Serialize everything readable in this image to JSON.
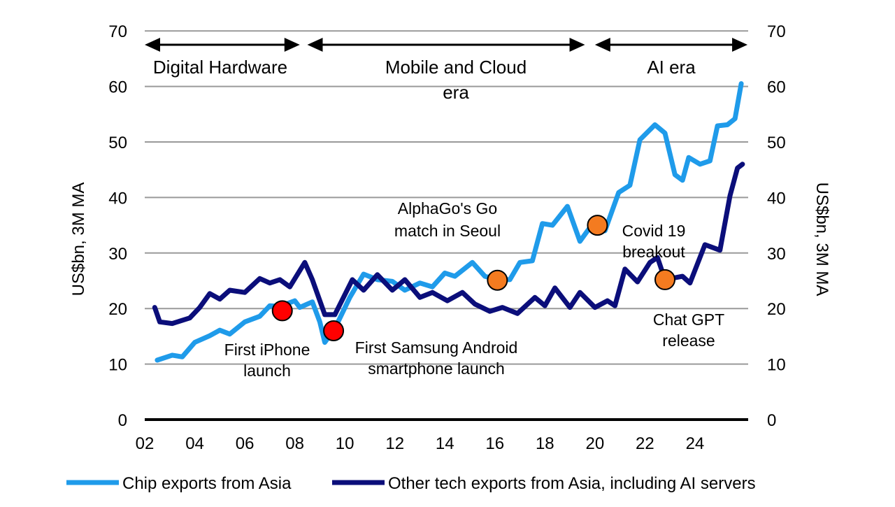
{
  "chart_data": {
    "type": "line",
    "title": "",
    "xlabel": "",
    "ylabel_left": "US$bn, 3M MA",
    "ylabel_right": "US$bn, 3M MA",
    "xlim": [
      2002,
      2026
    ],
    "ylim": [
      0,
      70
    ],
    "grid": true,
    "x_ticks": [
      "02",
      "04",
      "06",
      "08",
      "10",
      "12",
      "14",
      "16",
      "18",
      "20",
      "22",
      "24"
    ],
    "y_ticks": [
      "0",
      "10",
      "20",
      "30",
      "40",
      "50",
      "60",
      "70"
    ],
    "legend_position": "bottom",
    "colors": {
      "chip": "#1F9BEA",
      "other": "#0B0E7A",
      "red_marker": "#FF0000",
      "orange_marker": "#F47B20"
    },
    "series": [
      {
        "name": "Chip exports from Asia",
        "x": [
          2002.5,
          2003.1,
          2003.5,
          2004,
          2004.6,
          2005,
          2005.4,
          2006,
          2006.6,
          2007,
          2007.4,
          2008,
          2008.2,
          2008.7,
          2009,
          2009.2,
          2009.6,
          2010.2,
          2010.75,
          2011.3,
          2011.9,
          2012.4,
          2013,
          2013.5,
          2014,
          2014.4,
          2015.1,
          2015.6,
          2016.1,
          2016.6,
          2017,
          2017.5,
          2017.9,
          2018.3,
          2018.9,
          2019.4,
          2019.8,
          2020.4,
          2020.95,
          2021.4,
          2021.8,
          2022.4,
          2022.8,
          2023.2,
          2023.5,
          2023.75,
          2024.2,
          2024.6,
          2024.9,
          2025.3,
          2025.6,
          2025.85
        ],
        "values": [
          10.7,
          11.6,
          11.3,
          13.9,
          15.1,
          16.1,
          15.4,
          17.6,
          18.6,
          20.5,
          20.4,
          21.4,
          20.2,
          21.2,
          17.6,
          13.9,
          16.4,
          22,
          26.2,
          25.2,
          24.9,
          23.3,
          24.6,
          23.9,
          26.4,
          25.8,
          28.3,
          25.8,
          25.2,
          25.2,
          28.3,
          28.6,
          35.3,
          35,
          38.4,
          32.1,
          34.6,
          34,
          40.9,
          42.2,
          50.4,
          53.1,
          51.6,
          44.1,
          43.1,
          47.2,
          46,
          46.6,
          52.9,
          53.1,
          54.2,
          60.5
        ]
      },
      {
        "name": "Other tech exports from Asia, including AI servers",
        "x": [
          2002.4,
          2002.6,
          2003.1,
          2003.8,
          2004.2,
          2004.6,
          2005,
          2005.4,
          2006,
          2006.6,
          2007,
          2007.4,
          2007.8,
          2008.4,
          2008.7,
          2009.2,
          2009.6,
          2010.3,
          2010.75,
          2011.3,
          2011.9,
          2012.4,
          2013,
          2013.5,
          2014.1,
          2014.7,
          2015.2,
          2015.8,
          2016.3,
          2016.9,
          2017.6,
          2018,
          2018.4,
          2019,
          2019.4,
          2020,
          2020.5,
          2020.8,
          2021.2,
          2021.7,
          2022.2,
          2022.5,
          2022.8,
          2023.5,
          2023.8,
          2024.4,
          2025,
          2025.4,
          2025.7,
          2025.9
        ],
        "values": [
          20.2,
          17.6,
          17.3,
          18.3,
          20.2,
          22.7,
          21.7,
          23.3,
          22.9,
          25.4,
          24.6,
          25.2,
          23.9,
          28.3,
          25.2,
          18.9,
          18.9,
          25.2,
          23.3,
          26.1,
          23.3,
          25.2,
          22,
          22.9,
          21.4,
          22.9,
          20.8,
          19.5,
          20.2,
          19.1,
          22,
          20.5,
          23.7,
          20.2,
          22.9,
          20.2,
          21.4,
          20.5,
          27.1,
          24.8,
          28.3,
          29.2,
          25.2,
          25.8,
          24.6,
          31.5,
          30.5,
          40.3,
          45.3,
          46
        ]
      }
    ],
    "eras": [
      {
        "label": "Digital Hardware",
        "from": 2002,
        "to": 2008.2
      },
      {
        "label": "Mobile and Cloud era",
        "from": 2008.5,
        "to": 2019.6
      },
      {
        "label": "AI era",
        "from": 2020,
        "to": 2026.1
      }
    ],
    "annotations": [
      {
        "label": "First  iPhone launch",
        "x": 2007.5,
        "y": 19.6,
        "marker": "red"
      },
      {
        "label": "First Samsung Android smartphone launch",
        "x": 2009.55,
        "y": 16,
        "marker": "red"
      },
      {
        "label": "AlphaGo's Go match in Seoul",
        "x": 2016.1,
        "y": 25.1,
        "marker": "orange"
      },
      {
        "label": "Covid 19 breakout",
        "x": 2020.1,
        "y": 35,
        "marker": "orange"
      },
      {
        "label": "Chat GPT release",
        "x": 2022.8,
        "y": 25.2,
        "marker": "orange"
      }
    ]
  }
}
